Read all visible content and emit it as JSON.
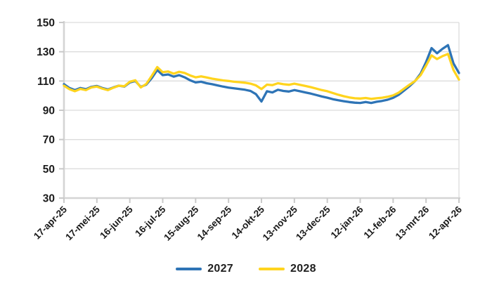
{
  "chart_data": {
    "type": "line",
    "title": "",
    "xlabel": "",
    "ylabel": "",
    "ylim": [
      30,
      150
    ],
    "y_ticks": [
      150,
      130,
      110,
      90,
      70,
      50,
      30
    ],
    "x_labels": [
      "17-apr-25",
      "17-mei-25",
      "16-jun-25",
      "16-jul-25",
      "15-aug-25",
      "14-sep-25",
      "14-okt-25",
      "13-nov-25",
      "13-dec-25",
      "12-jan-26",
      "11-feb-26",
      "13-mrt-26",
      "12-apr-26"
    ],
    "grid": "horizontal",
    "legend_position": "bottom-center",
    "sampling": "values estimated at 5-day intervals, index 0 = 17-apr-25, index 72 = 12-apr-26",
    "series": [
      {
        "name": "2027",
        "color": "#2E74B6",
        "values": [
          107.8,
          105.2,
          103.8,
          105.2,
          104.4,
          106,
          106.6,
          105.2,
          104.2,
          105.6,
          106.8,
          106.2,
          109,
          110,
          106,
          107.5,
          112,
          117.5,
          114,
          114.5,
          113,
          114,
          112.5,
          110.5,
          109,
          109.5,
          108.5,
          107.8,
          107,
          106.2,
          105.5,
          105,
          104.5,
          104,
          103.2,
          101,
          96,
          103,
          102.2,
          104,
          103.2,
          102.8,
          103.8,
          103,
          102.2,
          101.4,
          100.4,
          99.4,
          98.6,
          97.6,
          96.8,
          96.2,
          95.6,
          95.2,
          95,
          95.6,
          95,
          95.8,
          96.4,
          97.2,
          98.5,
          100.5,
          103.5,
          106.5,
          110,
          115,
          123,
          132.5,
          129,
          132,
          134.5,
          122,
          115.5
        ]
      },
      {
        "name": "2028",
        "color": "#FFD41E",
        "values": [
          106.8,
          104.4,
          103,
          104.6,
          103.8,
          105.6,
          106.2,
          104.8,
          103.8,
          105.4,
          106.8,
          106.4,
          109.5,
          110.5,
          105.6,
          108,
          113.5,
          119.5,
          116,
          116.5,
          115,
          116.3,
          115.5,
          113.8,
          112.5,
          113.2,
          112.4,
          111.6,
          111,
          110.4,
          110,
          109.5,
          109.2,
          108.8,
          108.2,
          107,
          104.5,
          107.5,
          107.2,
          108.5,
          107.8,
          107.4,
          108.2,
          107.4,
          106.6,
          105.8,
          104.8,
          103.8,
          103,
          101.8,
          100.6,
          99.6,
          98.8,
          98.2,
          98,
          98.4,
          97.8,
          98.2,
          98.6,
          99.2,
          100.2,
          102,
          104.8,
          107.5,
          110,
          114,
          120.5,
          127.5,
          125,
          127,
          128.5,
          117.5,
          111
        ]
      }
    ]
  },
  "colors": {
    "grid": "#DCDCDC",
    "axis": "#D4D4D4",
    "tick": "#C9C9C9",
    "text": "#1A1A1A",
    "background": "#FFFFFF",
    "series_2027": "#2E74B6",
    "series_2028": "#FFD41E"
  }
}
